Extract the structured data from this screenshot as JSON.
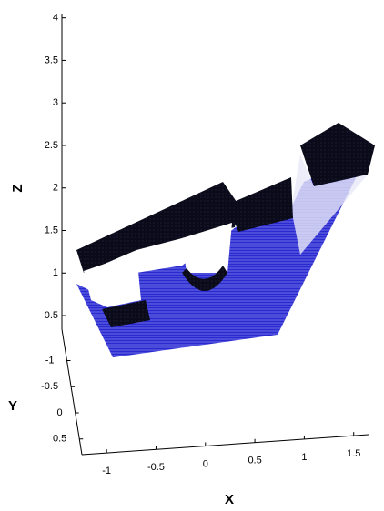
{
  "chart_data": {
    "type": "scatter3d",
    "xlabel": "X",
    "ylabel": "Y",
    "zlabel": "Z",
    "xlim": [
      -1.25,
      1.65
    ],
    "xticks": [
      -1,
      -0.5,
      0,
      0.5,
      1,
      1.5
    ],
    "ylim": [
      -1.6,
      0.8
    ],
    "yticks": [
      -1,
      -0.5,
      0,
      0.5
    ],
    "zlim": [
      0.34,
      4.05
    ],
    "zticks": [
      0.5,
      1,
      1.5,
      2,
      2.5,
      3,
      3.5,
      4
    ],
    "color": "#1a1ab4"
  }
}
